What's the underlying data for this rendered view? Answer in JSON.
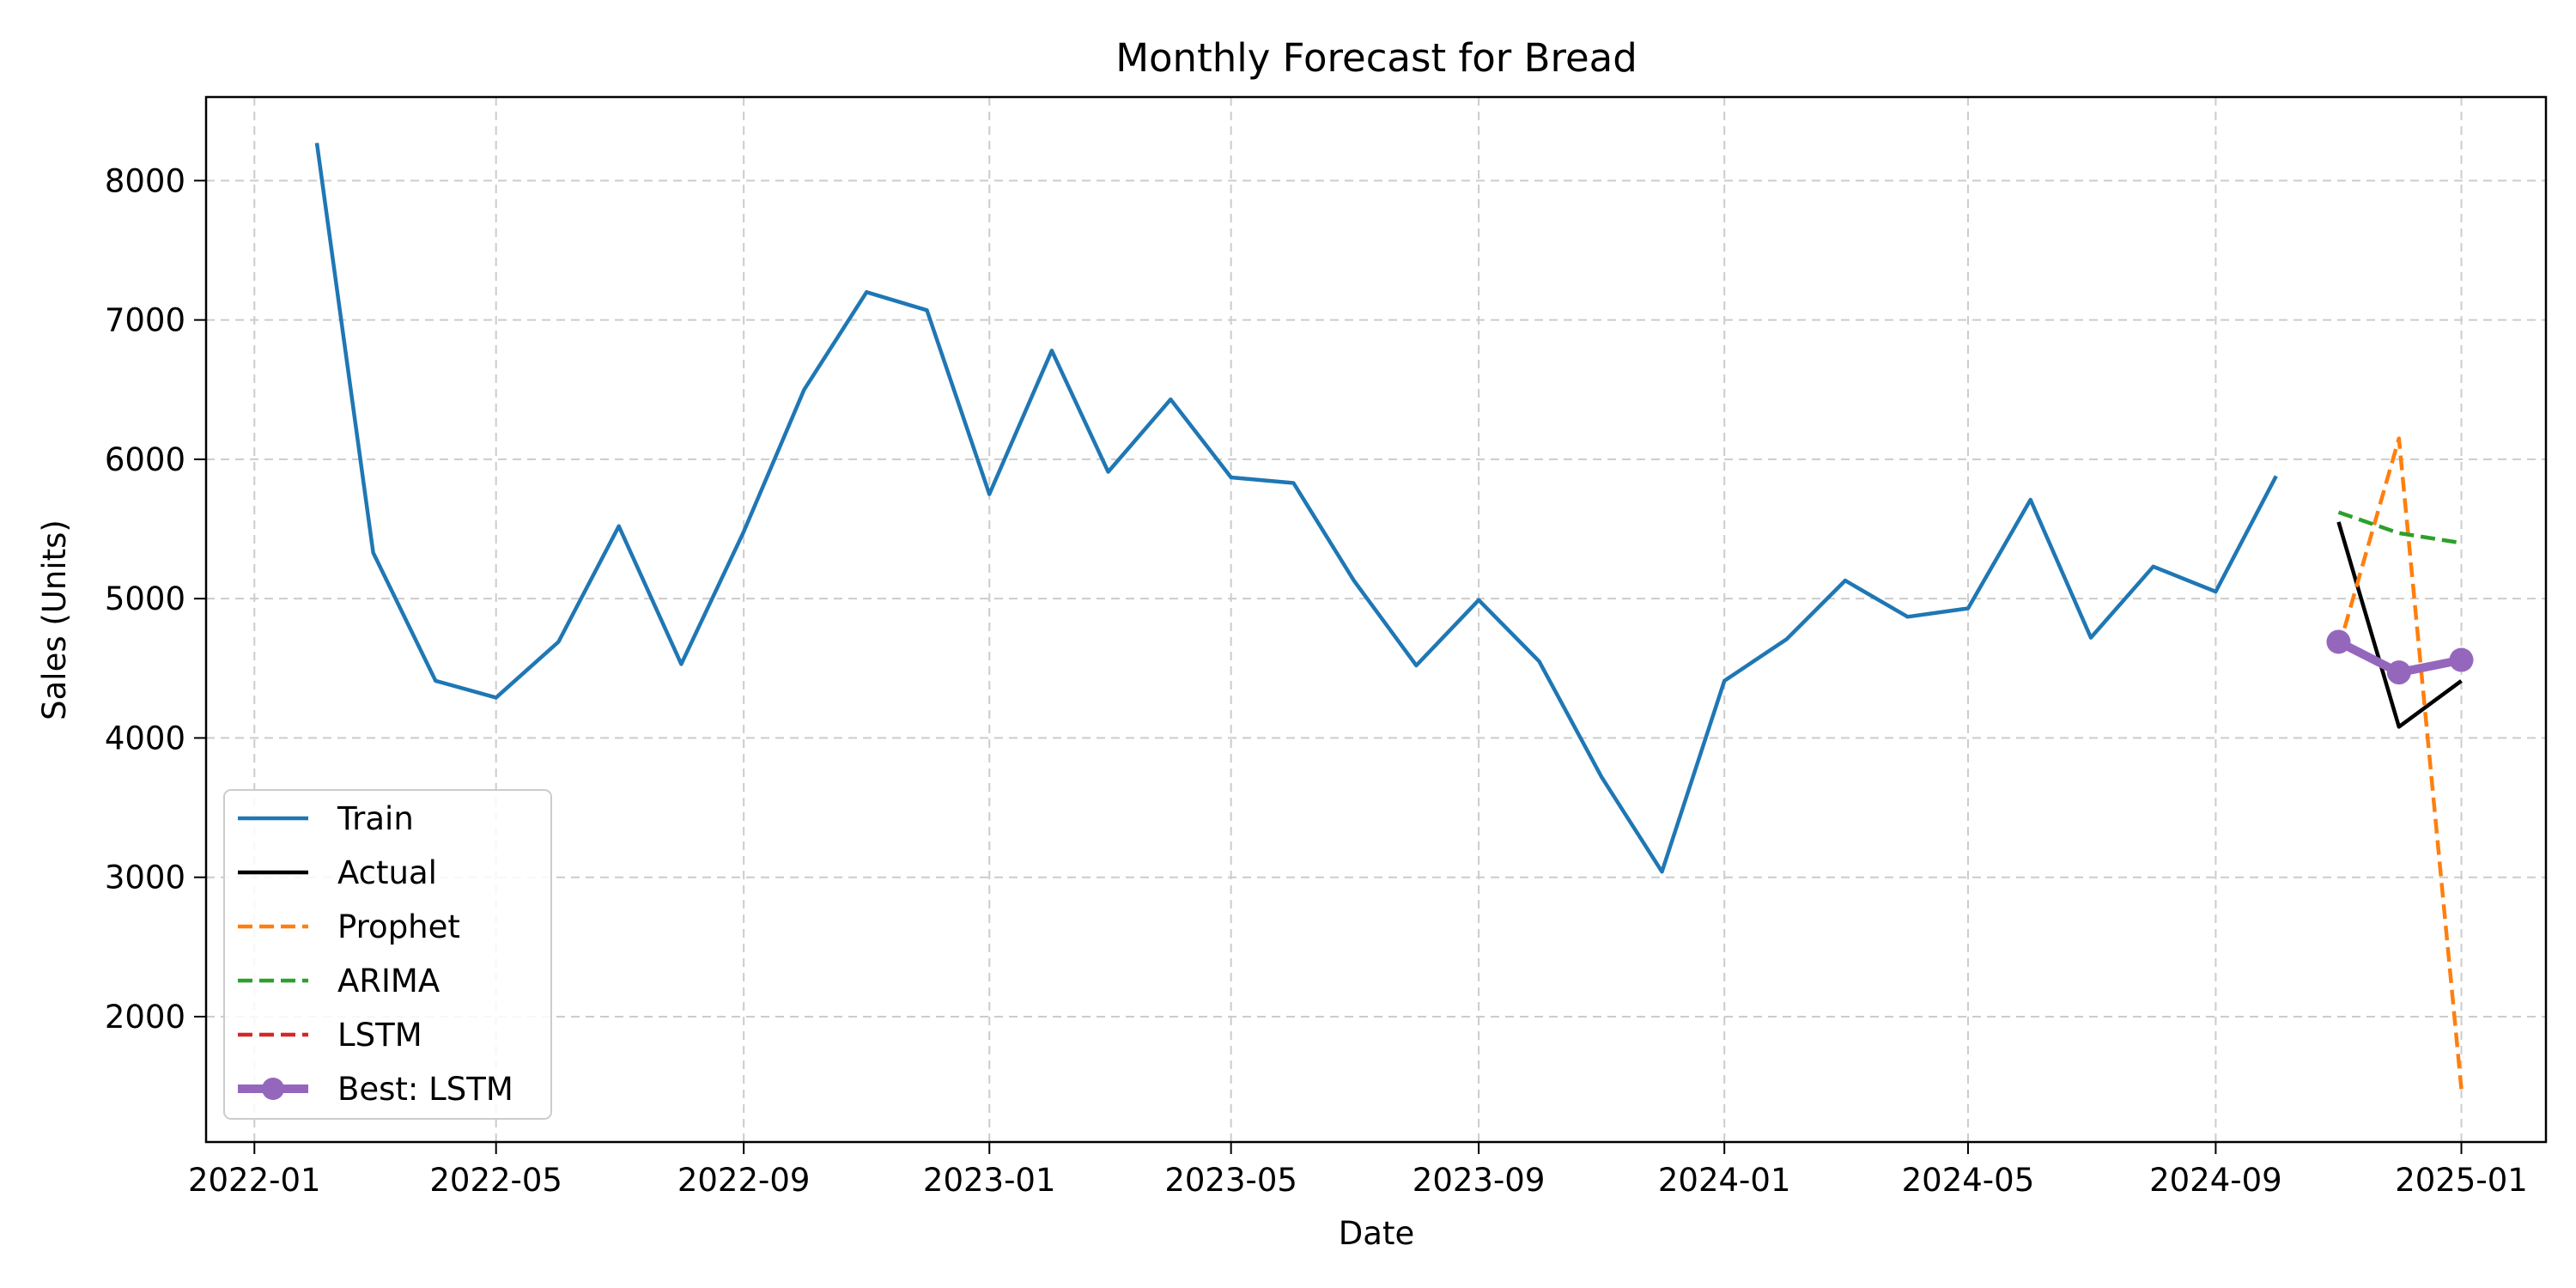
{
  "chart_data": {
    "type": "line",
    "title": "Monthly Forecast for Bread",
    "xlabel": "Date",
    "ylabel": "Sales (Units)",
    "x_ticks": [
      "2022-01",
      "2022-05",
      "2022-09",
      "2023-01",
      "2023-05",
      "2023-09",
      "2024-01",
      "2024-05",
      "2024-09",
      "2025-01"
    ],
    "y_ticks": [
      2000,
      3000,
      4000,
      5000,
      6000,
      7000,
      8000
    ],
    "xlim": [
      "2021-12-08",
      "2025-02-12"
    ],
    "ylim": [
      1100,
      8600
    ],
    "grid": true,
    "legend_position": "lower-left",
    "series": [
      {
        "name": "Train",
        "color": "#1f77b4",
        "style": "solid",
        "points": [
          [
            "2022-02-01",
            8270
          ],
          [
            "2022-03-01",
            5330
          ],
          [
            "2022-04-01",
            4410
          ],
          [
            "2022-05-01",
            4290
          ],
          [
            "2022-06-01",
            4690
          ],
          [
            "2022-07-01",
            5520
          ],
          [
            "2022-08-01",
            4530
          ],
          [
            "2022-09-01",
            5480
          ],
          [
            "2022-10-01",
            6500
          ],
          [
            "2022-11-01",
            7200
          ],
          [
            "2022-12-01",
            7070
          ],
          [
            "2023-01-01",
            5750
          ],
          [
            "2023-02-01",
            6780
          ],
          [
            "2023-03-01",
            5910
          ],
          [
            "2023-04-01",
            6430
          ],
          [
            "2023-05-01",
            5870
          ],
          [
            "2023-06-01",
            5830
          ],
          [
            "2023-07-01",
            5130
          ],
          [
            "2023-08-01",
            4520
          ],
          [
            "2023-09-01",
            4990
          ],
          [
            "2023-10-01",
            4550
          ],
          [
            "2023-11-01",
            3720
          ],
          [
            "2023-12-01",
            3040
          ],
          [
            "2024-01-01",
            4410
          ],
          [
            "2024-02-01",
            4710
          ],
          [
            "2024-03-01",
            5130
          ],
          [
            "2024-04-01",
            4870
          ],
          [
            "2024-05-01",
            4930
          ],
          [
            "2024-06-01",
            5710
          ],
          [
            "2024-07-01",
            4720
          ],
          [
            "2024-08-01",
            5230
          ],
          [
            "2024-09-01",
            5050
          ],
          [
            "2024-10-01",
            5880
          ]
        ]
      },
      {
        "name": "Actual",
        "color": "#000000",
        "style": "solid",
        "points": [
          [
            "2024-11-01",
            5550
          ],
          [
            "2024-12-01",
            4080
          ],
          [
            "2025-01-01",
            4410
          ]
        ]
      },
      {
        "name": "Prophet",
        "color": "#ff7f0e",
        "style": "dashed",
        "points": [
          [
            "2024-11-01",
            4640
          ],
          [
            "2024-12-01",
            6150
          ],
          [
            "2025-01-01",
            1480
          ]
        ]
      },
      {
        "name": "ARIMA",
        "color": "#2ca02c",
        "style": "dashed",
        "points": [
          [
            "2024-11-01",
            5620
          ],
          [
            "2024-12-01",
            5470
          ],
          [
            "2025-01-01",
            5400
          ]
        ]
      },
      {
        "name": "LSTM",
        "color": "#d62728",
        "style": "dashed",
        "points": [
          [
            "2024-11-01",
            4690
          ],
          [
            "2024-12-01",
            4470
          ],
          [
            "2025-01-01",
            4560
          ]
        ]
      },
      {
        "name": "Best: LSTM",
        "color": "#9467bd",
        "style": "solid-markers",
        "points": [
          [
            "2024-11-01",
            4690
          ],
          [
            "2024-12-01",
            4470
          ],
          [
            "2025-01-01",
            4560
          ]
        ]
      }
    ]
  }
}
